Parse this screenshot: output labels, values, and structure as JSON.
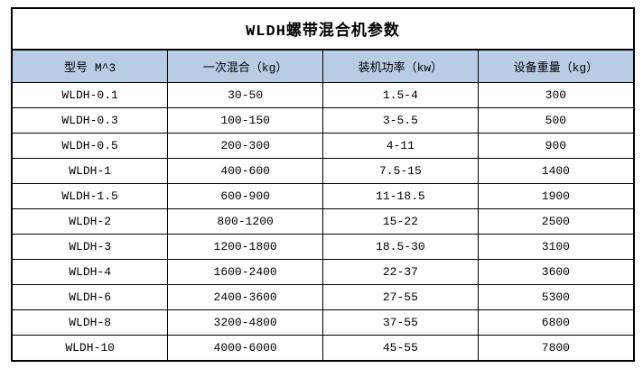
{
  "page": {
    "background": "#ffffff"
  },
  "table": {
    "title": "WLDH螺带混合机参数",
    "header_bg": "#B8CCE4",
    "border_color": "#000000",
    "text_color": "#000000",
    "columns": [
      "型号 M^3",
      "一次混合（kg）",
      "装机功率（kw）",
      "设备重量（kg）"
    ],
    "rows": [
      [
        "WLDH-0.1",
        "30-50",
        "1.5-4",
        "300"
      ],
      [
        "WLDH-0.3",
        "100-150",
        "3-5.5",
        "500"
      ],
      [
        "WLDH-0.5",
        "200-300",
        "4-11",
        "900"
      ],
      [
        "WLDH-1",
        "400-600",
        "7.5-15",
        "1400"
      ],
      [
        "WLDH-1.5",
        "600-900",
        "11-18.5",
        "1900"
      ],
      [
        "WLDH-2",
        "800-1200",
        "15-22",
        "2500"
      ],
      [
        "WLDH-3",
        "1200-1800",
        "18.5-30",
        "3100"
      ],
      [
        "WLDH-4",
        "1600-2400",
        "22-37",
        "3600"
      ],
      [
        "WLDH-6",
        "2400-3600",
        "27-55",
        "5300"
      ],
      [
        "WLDH-8",
        "3200-4800",
        "37-55",
        "6800"
      ],
      [
        "WLDH-10",
        "4000-6000",
        "45-55",
        "7800"
      ]
    ]
  }
}
